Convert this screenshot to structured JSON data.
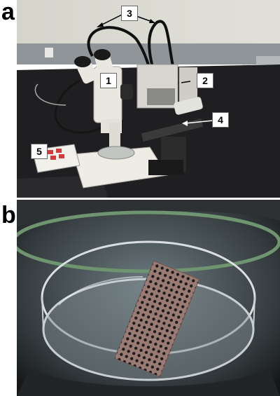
{
  "figure": {
    "panel_a": {
      "letter": "a",
      "callouts": [
        {
          "id": "1",
          "label": "1"
        },
        {
          "id": "2",
          "label": "2"
        },
        {
          "id": "3",
          "label": "3"
        },
        {
          "id": "4",
          "label": "4"
        },
        {
          "id": "5",
          "label": "5"
        }
      ]
    },
    "panel_b": {
      "letter": "b"
    }
  },
  "colors": {
    "wall": "#dcdcd4",
    "baseboard": "#8f9599",
    "bench": "#1f1f22",
    "microscope": "#e9e7df",
    "cable": "#151515",
    "grid": "#9a7b74"
  }
}
